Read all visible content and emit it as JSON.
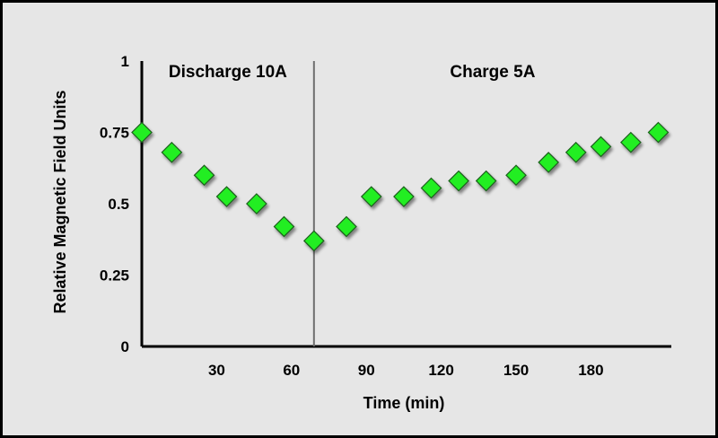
{
  "chart_data": {
    "type": "scatter",
    "title": "",
    "xlabel": "Time (min)",
    "ylabel": "Relative Magnetic Field Units",
    "xlim": [
      0,
      205
    ],
    "ylim": [
      0,
      1
    ],
    "x_ticks": [
      30,
      60,
      90,
      120,
      150,
      180
    ],
    "x_tick_labels": [
      "30",
      "60",
      "90",
      "120",
      "150",
      "180"
    ],
    "y_ticks": [
      0,
      0.25,
      0.5,
      0.75,
      1
    ],
    "y_tick_labels": [
      "0",
      "0.25",
      "0.5",
      "0.75",
      "1"
    ],
    "grid": false,
    "legend": "none",
    "divider_x": 69,
    "regions": [
      {
        "label": "Discharge 10A"
      },
      {
        "label": "Charge 5A"
      }
    ],
    "series": [
      {
        "marker": "diamond",
        "color": "#22ee22",
        "points": [
          {
            "x": 0,
            "y": 0.75
          },
          {
            "x": 12,
            "y": 0.68
          },
          {
            "x": 25,
            "y": 0.6
          },
          {
            "x": 34,
            "y": 0.525
          },
          {
            "x": 46,
            "y": 0.5
          },
          {
            "x": 57,
            "y": 0.42
          },
          {
            "x": 69,
            "y": 0.37
          },
          {
            "x": 82,
            "y": 0.42
          },
          {
            "x": 92,
            "y": 0.525
          },
          {
            "x": 105,
            "y": 0.525
          },
          {
            "x": 116,
            "y": 0.555
          },
          {
            "x": 127,
            "y": 0.58
          },
          {
            "x": 138,
            "y": 0.58
          },
          {
            "x": 150,
            "y": 0.6
          },
          {
            "x": 163,
            "y": 0.645
          },
          {
            "x": 174,
            "y": 0.68
          },
          {
            "x": 184,
            "y": 0.7
          },
          {
            "x": 196,
            "y": 0.715
          },
          {
            "x": 207,
            "y": 0.75
          }
        ]
      }
    ]
  }
}
